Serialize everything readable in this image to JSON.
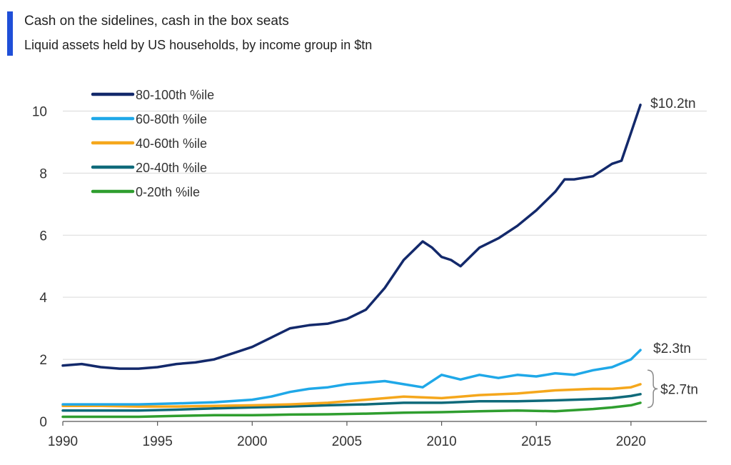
{
  "chart_data": {
    "type": "line",
    "title": "Cash on the sidelines, cash in the box seats",
    "subtitle": "Liquid assets held by US households, by income group in $tn",
    "xlabel": "",
    "ylabel": "",
    "xlim": [
      1990,
      2024
    ],
    "ylim": [
      0,
      11
    ],
    "x_ticks": [
      1990,
      1995,
      2000,
      2005,
      2010,
      2015,
      2020
    ],
    "y_ticks": [
      0,
      2,
      4,
      6,
      8,
      10
    ],
    "grid": "horizontal",
    "legend_position": "top-left",
    "series": [
      {
        "name": "80-100th %ile",
        "color": "#13296b",
        "x": [
          1990,
          1991,
          1992,
          1993,
          1994,
          1995,
          1996,
          1997,
          1998,
          1999,
          2000,
          2001,
          2002,
          2003,
          2004,
          2005,
          2006,
          2007,
          2008,
          2009,
          2009.5,
          2010,
          2010.5,
          2011,
          2012,
          2013,
          2014,
          2015,
          2016,
          2016.5,
          2017,
          2018,
          2019,
          2019.5,
          2020,
          2020.5
        ],
        "values": [
          1.8,
          1.85,
          1.75,
          1.7,
          1.7,
          1.75,
          1.85,
          1.9,
          2.0,
          2.2,
          2.4,
          2.7,
          3.0,
          3.1,
          3.15,
          3.3,
          3.6,
          4.3,
          5.2,
          5.8,
          5.6,
          5.3,
          5.2,
          5.0,
          5.6,
          5.9,
          6.3,
          6.8,
          7.4,
          7.8,
          7.8,
          7.9,
          8.3,
          8.4,
          9.3,
          10.2
        ]
      },
      {
        "name": "60-80th %ile",
        "color": "#1fa8e8",
        "x": [
          1990,
          1992,
          1994,
          1996,
          1998,
          2000,
          2001,
          2002,
          2003,
          2004,
          2005,
          2006,
          2007,
          2008,
          2009,
          2010,
          2011,
          2012,
          2013,
          2014,
          2015,
          2016,
          2017,
          2018,
          2019,
          2020,
          2020.5
        ],
        "values": [
          0.55,
          0.55,
          0.55,
          0.58,
          0.62,
          0.7,
          0.8,
          0.95,
          1.05,
          1.1,
          1.2,
          1.25,
          1.3,
          1.2,
          1.1,
          1.5,
          1.35,
          1.5,
          1.4,
          1.5,
          1.45,
          1.55,
          1.5,
          1.65,
          1.75,
          2.0,
          2.3
        ]
      },
      {
        "name": "40-60th %ile",
        "color": "#f5a71c",
        "x": [
          1990,
          1992,
          1994,
          1996,
          1998,
          2000,
          2002,
          2004,
          2006,
          2008,
          2010,
          2012,
          2014,
          2016,
          2018,
          2019,
          2020,
          2020.5
        ],
        "values": [
          0.5,
          0.5,
          0.48,
          0.48,
          0.5,
          0.52,
          0.55,
          0.6,
          0.7,
          0.8,
          0.75,
          0.85,
          0.9,
          1.0,
          1.05,
          1.05,
          1.1,
          1.2
        ]
      },
      {
        "name": "20-40th %ile",
        "color": "#0f6a7a",
        "x": [
          1990,
          1992,
          1994,
          1996,
          1998,
          2000,
          2002,
          2004,
          2006,
          2008,
          2010,
          2012,
          2014,
          2016,
          2018,
          2019,
          2020,
          2020.5
        ],
        "values": [
          0.35,
          0.35,
          0.35,
          0.38,
          0.42,
          0.45,
          0.48,
          0.52,
          0.55,
          0.6,
          0.6,
          0.65,
          0.65,
          0.68,
          0.72,
          0.75,
          0.82,
          0.88
        ]
      },
      {
        "name": "0-20th %ile",
        "color": "#2f9e2f",
        "x": [
          1990,
          1992,
          1994,
          1996,
          1998,
          2000,
          2002,
          2004,
          2006,
          2008,
          2010,
          2012,
          2014,
          2016,
          2018,
          2019,
          2020,
          2020.5
        ],
        "values": [
          0.15,
          0.15,
          0.15,
          0.18,
          0.2,
          0.2,
          0.22,
          0.23,
          0.25,
          0.28,
          0.3,
          0.33,
          0.35,
          0.33,
          0.4,
          0.45,
          0.52,
          0.6
        ]
      }
    ],
    "annotations": [
      {
        "id": "top",
        "text": "$10.2tn"
      },
      {
        "id": "mid",
        "text": "$2.3tn"
      },
      {
        "id": "bracket",
        "text": "$2.7tn"
      }
    ]
  }
}
